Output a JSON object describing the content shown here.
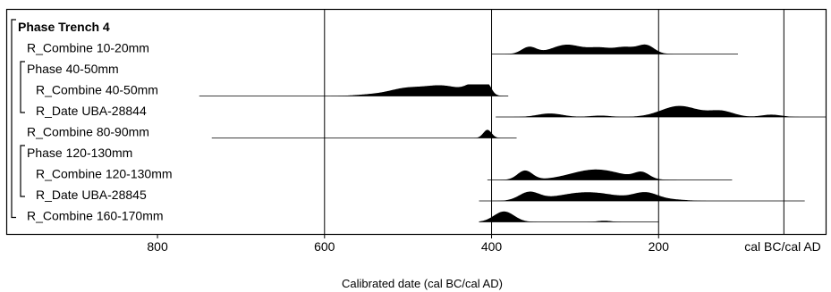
{
  "chart_data": {
    "type": "area",
    "title": "",
    "xlabel": "Calibrated date (cal BC/cal AD)",
    "x_unit_label": "cal BC/cal AD",
    "ylabel": "",
    "xlim": [
      980,
      0
    ],
    "x_ticks": [
      {
        "value": 800,
        "label": "800"
      },
      {
        "value": 600,
        "label": "600"
      },
      {
        "value": 400,
        "label": "400"
      },
      {
        "value": 200,
        "label": "200"
      }
    ],
    "gridlines_x": [
      600,
      400,
      200,
      50
    ],
    "series": [
      {
        "name": "Phase Trench 4",
        "kind": "phase",
        "bold": true,
        "level": 0,
        "range": null,
        "peaks": []
      },
      {
        "name": "R_Combine 10-20mm",
        "kind": "date",
        "level": 1,
        "range": [
          400,
          105
        ],
        "peaks": [
          {
            "center": 355,
            "width": 9,
            "height": 0.6
          },
          {
            "center": 310,
            "width": 18,
            "height": 0.8
          },
          {
            "center": 270,
            "width": 14,
            "height": 0.5
          },
          {
            "center": 240,
            "width": 12,
            "height": 0.55
          },
          {
            "center": 215,
            "width": 10,
            "height": 0.75
          }
        ]
      },
      {
        "name": "Phase 40-50mm",
        "kind": "phase",
        "level": 1,
        "range": null,
        "peaks": []
      },
      {
        "name": "R_Combine 40-50mm",
        "kind": "date",
        "level": 2,
        "range": [
          750,
          380
        ],
        "peaks": [
          {
            "center": 540,
            "width": 20,
            "height": 0.15
          },
          {
            "center": 505,
            "width": 18,
            "height": 0.5
          },
          {
            "center": 460,
            "width": 25,
            "height": 0.9
          },
          {
            "center": 420,
            "width": 10,
            "height": 0.85
          },
          {
            "center": 405,
            "width": 5,
            "height": 0.8
          }
        ]
      },
      {
        "name": "R_Date UBA-28844",
        "kind": "date",
        "level": 2,
        "range": [
          395,
          0
        ],
        "peaks": [
          {
            "center": 330,
            "width": 15,
            "height": 0.3
          },
          {
            "center": 270,
            "width": 12,
            "height": 0.12
          },
          {
            "center": 175,
            "width": 22,
            "height": 0.95
          },
          {
            "center": 125,
            "width": 15,
            "height": 0.5
          },
          {
            "center": 65,
            "width": 12,
            "height": 0.2
          }
        ]
      },
      {
        "name": "R_Combine 80-90mm",
        "kind": "date",
        "level": 1,
        "range": [
          735,
          370
        ],
        "peaks": [
          {
            "center": 405,
            "width": 5,
            "height": 0.7
          }
        ]
      },
      {
        "name": "Phase 120-130mm",
        "kind": "phase",
        "level": 1,
        "range": null,
        "peaks": []
      },
      {
        "name": "R_Combine 120-130mm",
        "kind": "date",
        "level": 2,
        "range": [
          405,
          112
        ],
        "peaks": [
          {
            "center": 360,
            "width": 9,
            "height": 0.8
          },
          {
            "center": 275,
            "width": 30,
            "height": 0.9
          },
          {
            "center": 220,
            "width": 9,
            "height": 0.55
          }
        ]
      },
      {
        "name": "R_Date UBA-28845",
        "kind": "date",
        "level": 2,
        "range": [
          415,
          25
        ],
        "peaks": [
          {
            "center": 355,
            "width": 12,
            "height": 0.7
          },
          {
            "center": 285,
            "width": 35,
            "height": 0.75
          },
          {
            "center": 215,
            "width": 15,
            "height": 0.65
          },
          {
            "center": 180,
            "width": 15,
            "height": 0.1
          }
        ]
      },
      {
        "name": "R_Combine 160-170mm",
        "kind": "date",
        "level": 1,
        "range": [
          415,
          200
        ],
        "peaks": [
          {
            "center": 385,
            "width": 12,
            "height": 0.9
          },
          {
            "center": 265,
            "width": 8,
            "height": 0.1
          }
        ]
      }
    ],
    "phase_brackets": [
      {
        "from": 0,
        "to": 9
      },
      {
        "from": 2,
        "to": 4
      },
      {
        "from": 6,
        "to": 8
      }
    ],
    "grid": true,
    "legend": "none"
  }
}
